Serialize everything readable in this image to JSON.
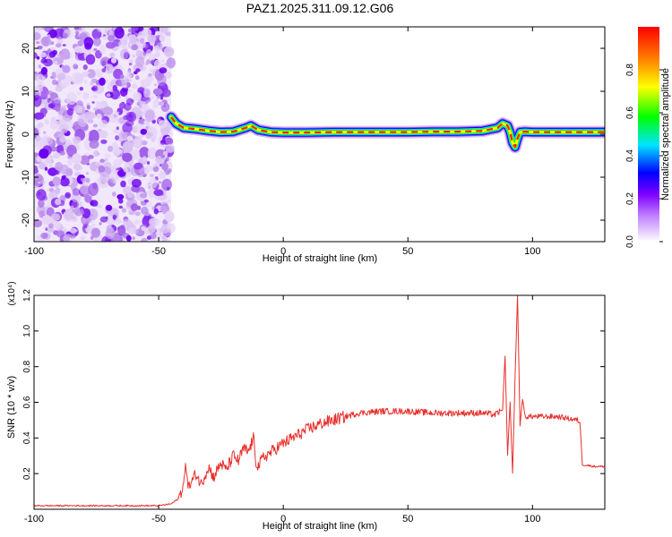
{
  "figure": {
    "title": "PAZ1.2025.311.09.12.G06"
  },
  "chart_data": [
    {
      "type": "heatmap",
      "xlabel": "Height of straight line (km)",
      "ylabel": "Frequency (Hz)",
      "xlim": [
        -100,
        129
      ],
      "ylim": [
        -25,
        25
      ],
      "x_ticks": [
        -100,
        -50,
        0,
        50,
        100
      ],
      "y_ticks": [
        -20,
        -10,
        0,
        10,
        20
      ],
      "noise_region": {
        "x": [
          -100,
          -45
        ],
        "y": [
          -25,
          25
        ]
      },
      "ridge": {
        "x": [
          -45,
          -43,
          -40,
          -35,
          -30,
          -25,
          -20,
          -15,
          -13,
          -10,
          -5,
          0,
          10,
          20,
          30,
          40,
          50,
          60,
          70,
          80,
          86,
          88,
          90,
          91,
          92,
          93,
          94,
          95,
          97,
          100,
          110,
          120,
          129
        ],
        "y": [
          4,
          2.5,
          1.5,
          1.2,
          0.8,
          0.5,
          0.6,
          1.5,
          2,
          1,
          0.5,
          0.4,
          0.4,
          0.5,
          0.5,
          0.5,
          0.5,
          0.6,
          0.6,
          0.8,
          1.5,
          2.5,
          2,
          0.5,
          -2,
          -3,
          -1,
          0.5,
          0.6,
          0.5,
          0.5,
          0.5,
          0.5
        ]
      },
      "colorbar": {
        "label": "Normalized spectral amplitude",
        "range": [
          0,
          1
        ],
        "ticks": [
          "0.0",
          "0.2",
          "0.4",
          "0.6",
          "0.8"
        ],
        "tick_values": [
          0,
          0.2,
          0.4,
          0.6,
          0.8
        ]
      },
      "colors": {
        "low": "#e8d8f6",
        "violet": "#7f00ff",
        "blue": "#0000ff",
        "cyan": "#00e5ff",
        "green": "#00ff00",
        "yellow": "#ffff00",
        "orange": "#ff8000",
        "red": "#ff0000"
      }
    },
    {
      "type": "line",
      "xlabel": "Height of straight line (km)",
      "ylabel": "SNR (10 * v/v)",
      "scale_label": "(x10⁴)",
      "xlim": [
        -100,
        129
      ],
      "ylim": [
        0,
        1.2
      ],
      "x_ticks": [
        -100,
        -50,
        0,
        50,
        100
      ],
      "y_ticks": [
        "0.2",
        "0.4",
        "0.6",
        "0.8",
        "1.0",
        "1.2"
      ],
      "y_tick_values": [
        0.2,
        0.4,
        0.6,
        0.8,
        1.0,
        1.2
      ],
      "series": [
        {
          "color": "#e8302c",
          "x": [
            -100,
            -90,
            -80,
            -70,
            -60,
            -50,
            -45,
            -42,
            -40,
            -39,
            -38,
            -35,
            -33,
            -30,
            -28,
            -25,
            -23,
            -20,
            -18,
            -16,
            -14,
            -12,
            -11,
            -10,
            -8,
            -5,
            0,
            5,
            10,
            15,
            20,
            25,
            30,
            40,
            50,
            60,
            70,
            80,
            85,
            88,
            89,
            90,
            91,
            92,
            93,
            94,
            95,
            96,
            97,
            100,
            110,
            118,
            119,
            120,
            125,
            129
          ],
          "y": [
            0.02,
            0.02,
            0.02,
            0.02,
            0.02,
            0.02,
            0.03,
            0.06,
            0.14,
            0.25,
            0.12,
            0.2,
            0.14,
            0.24,
            0.18,
            0.26,
            0.22,
            0.3,
            0.27,
            0.34,
            0.32,
            0.4,
            0.27,
            0.24,
            0.29,
            0.32,
            0.37,
            0.41,
            0.45,
            0.48,
            0.5,
            0.52,
            0.54,
            0.55,
            0.55,
            0.54,
            0.54,
            0.54,
            0.53,
            0.56,
            0.86,
            0.3,
            0.6,
            0.2,
            0.75,
            1.2,
            0.47,
            0.62,
            0.52,
            0.52,
            0.52,
            0.5,
            0.49,
            0.25,
            0.24,
            0.24
          ]
        }
      ]
    }
  ]
}
